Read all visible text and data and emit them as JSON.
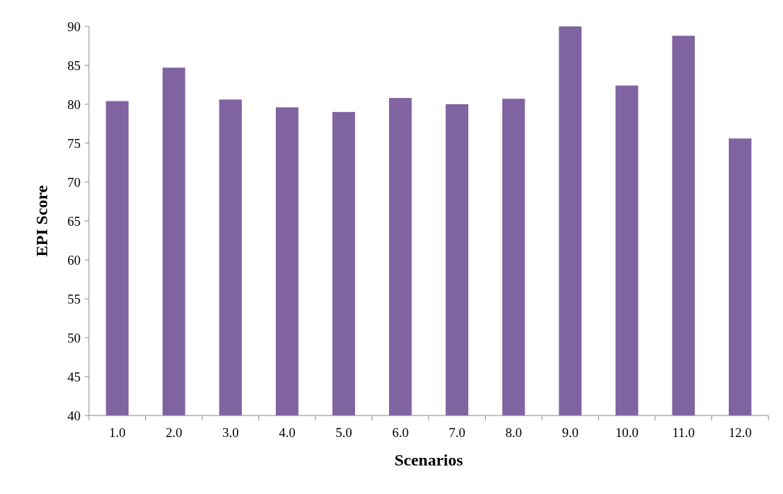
{
  "chart_data": {
    "type": "bar",
    "xlabel": "Scenarios",
    "ylabel": "EPI Score",
    "categories": [
      "1.0",
      "2.0",
      "3.0",
      "4.0",
      "5.0",
      "6.0",
      "7.0",
      "8.0",
      "9.0",
      "10.0",
      "11.0",
      "12.0"
    ],
    "values": [
      80.4,
      84.7,
      80.6,
      79.6,
      79.0,
      80.8,
      80.0,
      80.7,
      90.0,
      82.4,
      88.8,
      75.6
    ],
    "color": "#8064a2",
    "ylim": [
      40,
      90
    ],
    "yticks": [
      40,
      45,
      50,
      55,
      60,
      65,
      70,
      75,
      80,
      85,
      90
    ],
    "grid": false
  }
}
